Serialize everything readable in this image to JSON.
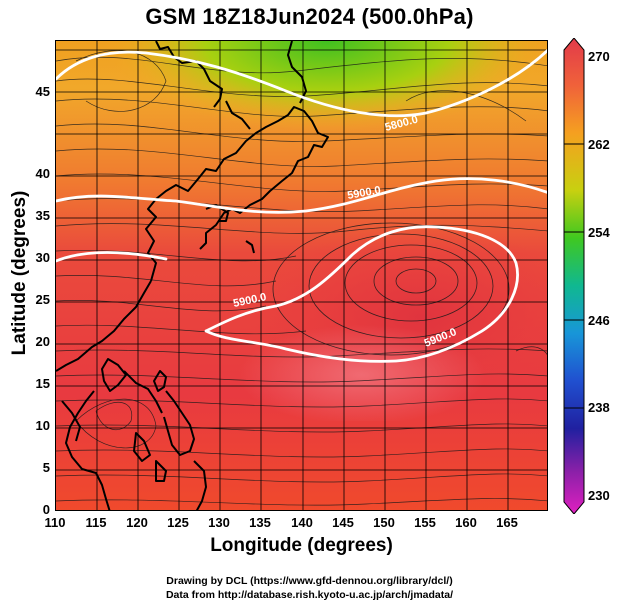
{
  "title": "GSM 18Z18Jun2024 (500.0hPa)",
  "axes": {
    "xlabel": "Longitude (degrees)",
    "ylabel": "Latitude (degrees)",
    "x_ticks": [
      "110",
      "115",
      "120",
      "125",
      "130",
      "135",
      "140",
      "145",
      "150",
      "155",
      "160",
      "165"
    ],
    "y_ticks": [
      "0",
      "5",
      "10",
      "15",
      "20",
      "25",
      "30",
      "35",
      "40",
      "45"
    ]
  },
  "colorbar": {
    "ticks": [
      "270",
      "262",
      "254",
      "246",
      "238",
      "230"
    ],
    "colors": [
      "#e23a4a",
      "#f0623a",
      "#f5a020",
      "#c8d010",
      "#40c820",
      "#10b890",
      "#1896d8",
      "#2050d0",
      "#2020a0",
      "#8a20a8",
      "#e020c0"
    ]
  },
  "contours": [
    {
      "label": "5900.0"
    },
    {
      "label": "5900.0"
    },
    {
      "label": "5800.0"
    },
    {
      "label": "5900.0"
    }
  ],
  "credits": {
    "line1": "Drawing by DCL (https://www.gfd-dennou.org/library/dcl/)",
    "line2": "Data from http://database.rish.kyoto-u.ac.jp/arch/jmadata/"
  }
}
